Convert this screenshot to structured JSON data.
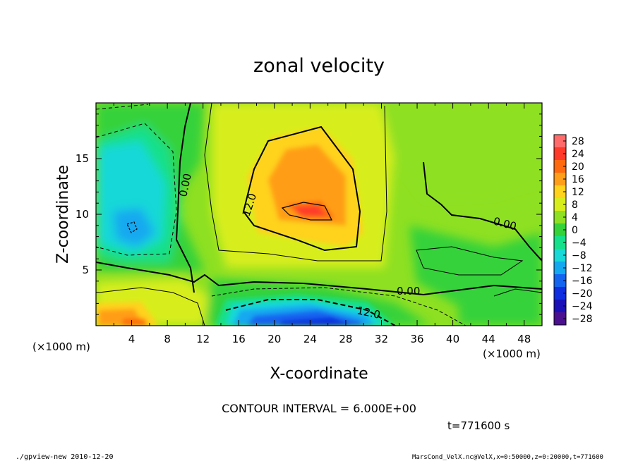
{
  "chart_data": {
    "type": "heatmap",
    "title": "zonal velocity",
    "xlabel": "X-coordinate",
    "ylabel": "Z-coordinate",
    "x_unit": "(×1000 m)",
    "y_unit": "(×1000 m)",
    "xlim": [
      0,
      50
    ],
    "ylim": [
      0,
      20
    ],
    "x_ticks": [
      "4",
      "8",
      "12",
      "16",
      "20",
      "24",
      "28",
      "32",
      "36",
      "40",
      "44",
      "48"
    ],
    "x_tick_values": [
      4,
      8,
      12,
      16,
      20,
      24,
      28,
      32,
      36,
      40,
      44,
      48
    ],
    "y_ticks": [
      "5",
      "10",
      "15"
    ],
    "y_tick_values": [
      5,
      10,
      15
    ],
    "colorbar": {
      "labels": [
        "28",
        "24",
        "20",
        "16",
        "12",
        "8",
        "4",
        "0",
        "−4",
        "−8",
        "−12",
        "−16",
        "−20",
        "−24",
        "−28"
      ],
      "values": [
        28,
        24,
        20,
        16,
        12,
        8,
        4,
        0,
        -4,
        -8,
        -12,
        -16,
        -20,
        -24,
        -28
      ],
      "colors": [
        "#ff6a6a",
        "#ff3a2a",
        "#ff6a10",
        "#ff9e18",
        "#ffd21c",
        "#d8ee1c",
        "#8ee022",
        "#35d23a",
        "#16e08a",
        "#18d8d8",
        "#14a8f0",
        "#1464f0",
        "#0f2ee0",
        "#1a10b8",
        "#4a1090"
      ]
    },
    "contour_labels": [
      "0.00",
      "12.0",
      "0.00",
      "0.00",
      "12.0"
    ],
    "contour_interval": "CONTOUR INTERVAL = 6.000E+00",
    "grid": false
  },
  "time_label": "t=771600  s",
  "footer_left": "./gpview-new  2010-12-20",
  "footer_right": "MarsCond_VelX.nc@VelX,x=0:50000,z=0:20000,t=771600"
}
